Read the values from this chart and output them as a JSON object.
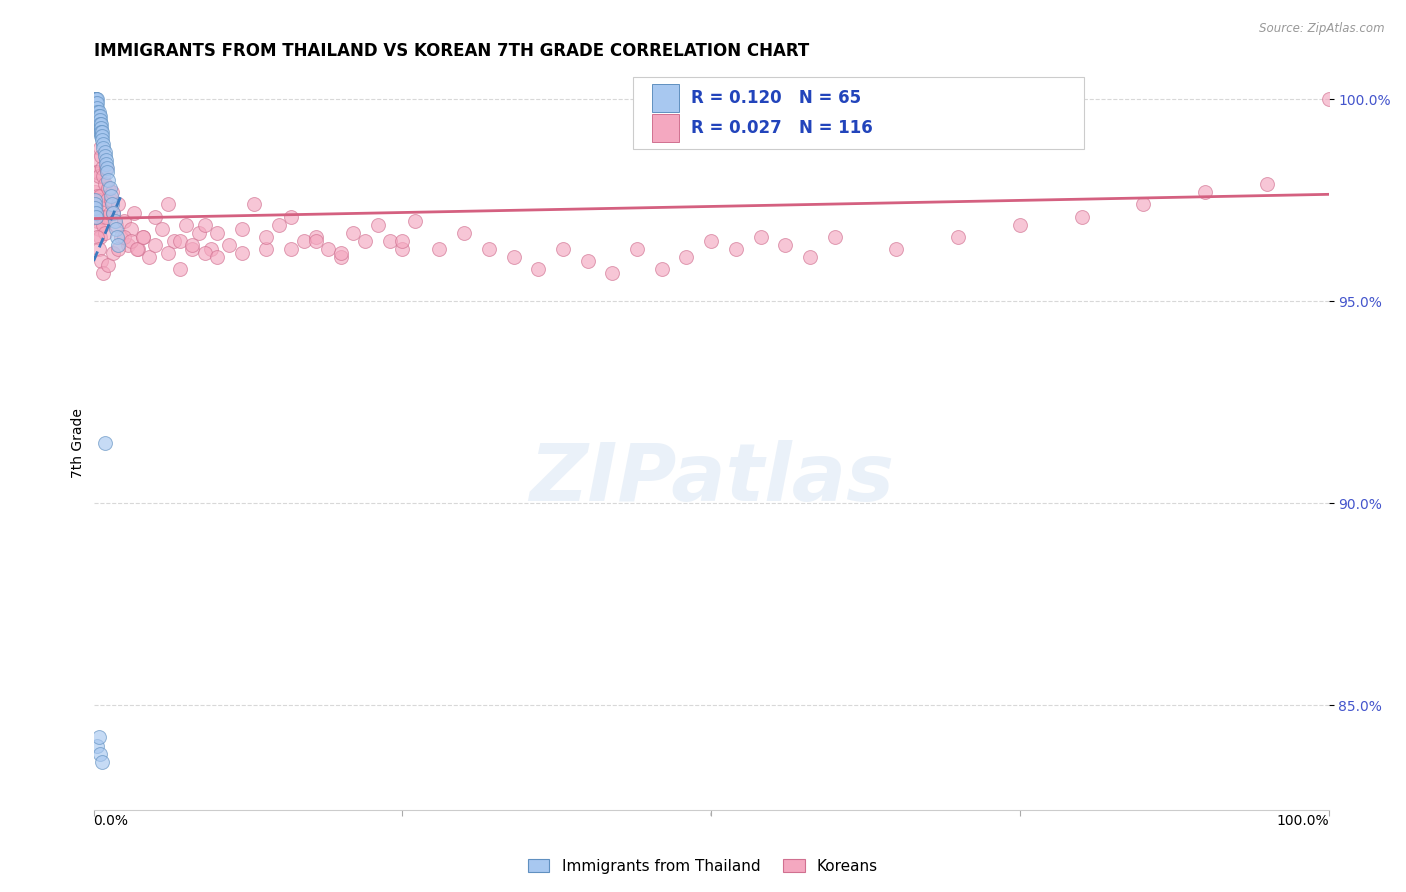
{
  "title": "IMMIGRANTS FROM THAILAND VS KOREAN 7TH GRADE CORRELATION CHART",
  "source": "Source: ZipAtlas.com",
  "ylabel": "7th Grade",
  "ylabel_ticks": [
    "85.0%",
    "90.0%",
    "95.0%",
    "100.0%"
  ],
  "ylabel_values": [
    0.85,
    0.9,
    0.95,
    1.0
  ],
  "xlim": [
    0.0,
    1.0
  ],
  "ylim": [
    0.824,
    1.006
  ],
  "thailand_color": "#a8c8f0",
  "thailand_edge": "#6090c0",
  "korean_color": "#f4a8c0",
  "korean_edge": "#d07090",
  "scatter_size": 100,
  "scatter_alpha": 0.65,
  "legend_R_N": [
    {
      "R": "0.120",
      "N": "65",
      "color": "#a8c8f0",
      "edge": "#6090c0"
    },
    {
      "R": "0.027",
      "N": "116",
      "color": "#f4a8c0",
      "edge": "#d07090"
    }
  ],
  "legend_labels": [
    "Immigrants from Thailand",
    "Koreans"
  ],
  "watermark": "ZIPatlas",
  "background_color": "#ffffff",
  "grid_color": "#d8d8d8",
  "title_fontsize": 12,
  "tick_color": "#4455cc",
  "tick_fontsize": 10,
  "thailand_trend_x": [
    0.0,
    0.022
  ],
  "thailand_trend_y": [
    0.96,
    0.976
  ],
  "thailand_trend_color": "#3a7abf",
  "korean_trend_x": [
    0.0,
    1.0
  ],
  "korean_trend_y": [
    0.9705,
    0.9765
  ],
  "korean_trend_color": "#d46080",
  "thailand_x": [
    0.001,
    0.001,
    0.001,
    0.001,
    0.001,
    0.001,
    0.001,
    0.002,
    0.002,
    0.002,
    0.002,
    0.002,
    0.002,
    0.002,
    0.003,
    0.003,
    0.003,
    0.003,
    0.003,
    0.003,
    0.003,
    0.004,
    0.004,
    0.004,
    0.004,
    0.004,
    0.005,
    0.005,
    0.005,
    0.005,
    0.005,
    0.006,
    0.006,
    0.006,
    0.006,
    0.007,
    0.007,
    0.007,
    0.008,
    0.008,
    0.009,
    0.009,
    0.01,
    0.01,
    0.011,
    0.011,
    0.012,
    0.013,
    0.014,
    0.015,
    0.016,
    0.017,
    0.018,
    0.019,
    0.02,
    0.001,
    0.001,
    0.001,
    0.002,
    0.002,
    0.003,
    0.004,
    0.005,
    0.007,
    0.009
  ],
  "thailand_y": [
    1.0,
    1.0,
    1.0,
    1.0,
    1.0,
    1.0,
    0.999,
    1.0,
    1.0,
    1.0,
    0.999,
    0.999,
    0.998,
    0.997,
    1.0,
    0.999,
    0.998,
    0.997,
    0.996,
    0.995,
    0.994,
    0.997,
    0.996,
    0.995,
    0.994,
    0.993,
    0.996,
    0.995,
    0.994,
    0.993,
    0.992,
    0.994,
    0.993,
    0.992,
    0.991,
    0.992,
    0.991,
    0.99,
    0.989,
    0.988,
    0.987,
    0.986,
    0.985,
    0.984,
    0.983,
    0.982,
    0.98,
    0.978,
    0.976,
    0.974,
    0.972,
    0.97,
    0.968,
    0.966,
    0.964,
    0.975,
    0.974,
    0.973,
    0.972,
    0.971,
    0.84,
    0.842,
    0.838,
    0.836,
    0.915
  ],
  "korean_x": [
    0.001,
    0.001,
    0.001,
    0.002,
    0.002,
    0.002,
    0.003,
    0.003,
    0.003,
    0.004,
    0.004,
    0.004,
    0.005,
    0.005,
    0.005,
    0.006,
    0.006,
    0.007,
    0.007,
    0.008,
    0.008,
    0.009,
    0.009,
    0.01,
    0.01,
    0.011,
    0.012,
    0.013,
    0.014,
    0.015,
    0.016,
    0.018,
    0.02,
    0.022,
    0.025,
    0.028,
    0.03,
    0.033,
    0.036,
    0.04,
    0.045,
    0.05,
    0.055,
    0.06,
    0.065,
    0.07,
    0.075,
    0.08,
    0.085,
    0.09,
    0.095,
    0.1,
    0.11,
    0.12,
    0.13,
    0.14,
    0.15,
    0.16,
    0.17,
    0.18,
    0.19,
    0.2,
    0.21,
    0.22,
    0.23,
    0.24,
    0.25,
    0.26,
    0.28,
    0.3,
    0.32,
    0.34,
    0.36,
    0.38,
    0.4,
    0.42,
    0.44,
    0.46,
    0.48,
    0.5,
    0.52,
    0.54,
    0.56,
    0.58,
    0.6,
    0.65,
    0.7,
    0.75,
    0.8,
    0.85,
    0.9,
    0.95,
    0.002,
    0.003,
    0.004,
    0.006,
    0.008,
    0.012,
    0.016,
    0.02,
    0.025,
    0.03,
    0.035,
    0.04,
    0.05,
    0.06,
    0.07,
    0.08,
    0.09,
    0.1,
    0.12,
    0.14,
    0.16,
    0.18,
    0.2,
    0.25,
    1.0
  ],
  "korean_y": [
    0.982,
    0.977,
    0.972,
    0.985,
    0.979,
    0.973,
    0.982,
    0.976,
    0.97,
    0.981,
    0.975,
    0.968,
    0.988,
    0.976,
    0.966,
    0.986,
    0.973,
    0.983,
    0.971,
    0.981,
    0.969,
    0.979,
    0.967,
    0.983,
    0.971,
    0.975,
    0.978,
    0.972,
    0.975,
    0.977,
    0.972,
    0.969,
    0.974,
    0.966,
    0.97,
    0.964,
    0.968,
    0.972,
    0.963,
    0.966,
    0.961,
    0.971,
    0.968,
    0.974,
    0.965,
    0.958,
    0.969,
    0.963,
    0.967,
    0.969,
    0.963,
    0.967,
    0.964,
    0.968,
    0.974,
    0.963,
    0.969,
    0.971,
    0.965,
    0.966,
    0.963,
    0.961,
    0.967,
    0.965,
    0.969,
    0.965,
    0.963,
    0.97,
    0.963,
    0.967,
    0.963,
    0.961,
    0.958,
    0.963,
    0.96,
    0.957,
    0.963,
    0.958,
    0.961,
    0.965,
    0.963,
    0.966,
    0.964,
    0.961,
    0.966,
    0.963,
    0.966,
    0.969,
    0.971,
    0.974,
    0.977,
    0.979,
    0.971,
    0.966,
    0.963,
    0.96,
    0.957,
    0.959,
    0.962,
    0.963,
    0.966,
    0.965,
    0.963,
    0.966,
    0.964,
    0.962,
    0.965,
    0.964,
    0.962,
    0.961,
    0.962,
    0.966,
    0.963,
    0.965,
    0.962,
    0.965,
    1.0
  ]
}
